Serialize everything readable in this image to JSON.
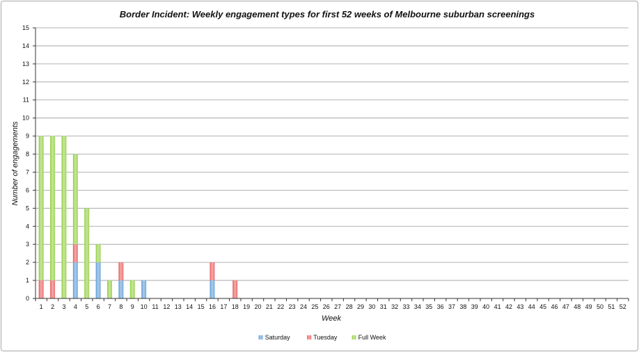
{
  "chart_data": {
    "type": "bar",
    "stacked": true,
    "title": "Border Incident: Weekly engagement types for first 52 weeks of Melbourne suburban screenings",
    "xlabel": "Week",
    "ylabel": "Number of engagements",
    "ylim": [
      0,
      15
    ],
    "yticks": [
      0,
      1,
      2,
      3,
      4,
      5,
      6,
      7,
      8,
      9,
      10,
      11,
      12,
      13,
      14,
      15
    ],
    "grid": true,
    "legend_position": "bottom",
    "categories": [
      "1",
      "2",
      "3",
      "4",
      "5",
      "6",
      "7",
      "8",
      "9",
      "10",
      "11",
      "12",
      "13",
      "14",
      "15",
      "16",
      "17",
      "18",
      "19",
      "20",
      "21",
      "22",
      "23",
      "24",
      "25",
      "26",
      "27",
      "28",
      "29",
      "30",
      "31",
      "32",
      "33",
      "34",
      "35",
      "36",
      "37",
      "38",
      "39",
      "40",
      "41",
      "42",
      "43",
      "44",
      "45",
      "46",
      "47",
      "48",
      "49",
      "50",
      "51",
      "52"
    ],
    "series": [
      {
        "name": "Saturday",
        "color": "#5b9bd5",
        "values": [
          0,
          0,
          0,
          2,
          0,
          2,
          0,
          1,
          0,
          1,
          0,
          0,
          0,
          0,
          0,
          1,
          0,
          0,
          0,
          0,
          0,
          0,
          0,
          0,
          0,
          0,
          0,
          0,
          0,
          0,
          0,
          0,
          0,
          0,
          0,
          0,
          0,
          0,
          0,
          0,
          0,
          0,
          0,
          0,
          0,
          0,
          0,
          0,
          0,
          0,
          0,
          0
        ]
      },
      {
        "name": "Tuesday",
        "color": "#e8595a",
        "values": [
          1,
          1,
          0,
          1,
          0,
          0,
          0,
          1,
          0,
          0,
          0,
          0,
          0,
          0,
          0,
          1,
          0,
          1,
          0,
          0,
          0,
          0,
          0,
          0,
          0,
          0,
          0,
          0,
          0,
          0,
          0,
          0,
          0,
          0,
          0,
          0,
          0,
          0,
          0,
          0,
          0,
          0,
          0,
          0,
          0,
          0,
          0,
          0,
          0,
          0,
          0,
          0
        ]
      },
      {
        "name": "Full Week",
        "color": "#8fce3c",
        "values": [
          8,
          8,
          9,
          5,
          5,
          1,
          1,
          0,
          1,
          0,
          0,
          0,
          0,
          0,
          0,
          0,
          0,
          0,
          0,
          0,
          0,
          0,
          0,
          0,
          0,
          0,
          0,
          0,
          0,
          0,
          0,
          0,
          0,
          0,
          0,
          0,
          0,
          0,
          0,
          0,
          0,
          0,
          0,
          0,
          0,
          0,
          0,
          0,
          0,
          0,
          0,
          0
        ]
      }
    ]
  }
}
